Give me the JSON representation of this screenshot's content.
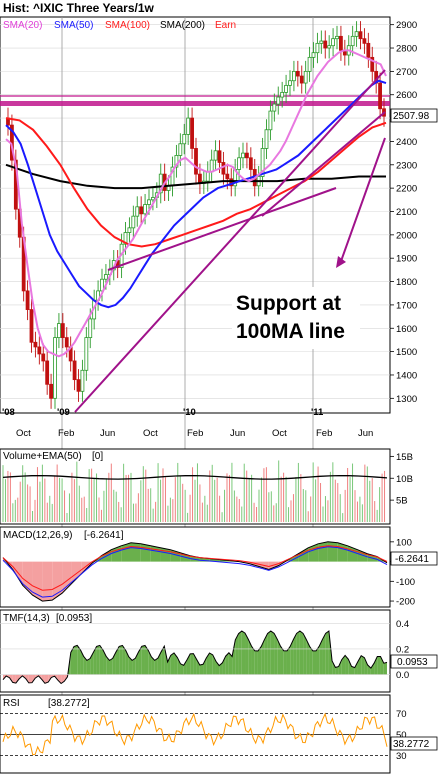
{
  "chart_data": {
    "type": "line",
    "title": "Hist: ^IXIC Three Years/1w",
    "colors": {
      "sma20": "#e040d8",
      "sma50": "#1a1aff",
      "sma100": "#ff1a1a",
      "sma200": "#000000",
      "earn": "#ff1a1a",
      "trendline": "#a0128a",
      "support_band": "#c0158c",
      "up_candle": "#2a9a2a",
      "down_candle": "#c01010",
      "volume_up": "#7ac87a",
      "volume_down": "#f08080",
      "macd_fill": "#6ab04c",
      "macd_neg_fill": "#f4a0a0",
      "rsi_line": "#ff9900"
    },
    "legend": [
      "SMA(20)",
      "SMA(50)",
      "SMA(100)",
      "SMA(200)",
      "Earn"
    ],
    "year_labels": [
      "'08",
      "'09",
      "'10",
      "'11"
    ],
    "month_labels": [
      "Oct",
      "Feb",
      "Jun",
      "Oct",
      "Feb",
      "Jun",
      "Oct",
      "Feb",
      "Jun"
    ],
    "price_panel": {
      "y_ticks": [
        1300,
        1400,
        1500,
        1600,
        1700,
        1800,
        1900,
        2000,
        2100,
        2200,
        2300,
        2400,
        2500,
        2600,
        2700,
        2800,
        2900
      ],
      "ylim": [
        1250,
        2920
      ],
      "last_value": "2507.98",
      "annotation": "Support at 100MA line",
      "annotation_lines": [
        "Support at",
        "100MA line"
      ],
      "close_series": [
        2470,
        2320,
        2110,
        1990,
        1760,
        1680,
        1540,
        1520,
        1490,
        1460,
        1360,
        1300,
        1560,
        1620,
        1560,
        1520,
        1460,
        1380,
        1330,
        1420,
        1560,
        1640,
        1720,
        1760,
        1810,
        1830,
        1850,
        1890,
        1860,
        1960,
        2010,
        2030,
        2080,
        2120,
        2090,
        2130,
        2150,
        2160,
        2180,
        2260,
        2190,
        2210,
        2290,
        2340,
        2390,
        2430,
        2500,
        2370,
        2260,
        2220,
        2230,
        2270,
        2320,
        2360,
        2310,
        2260,
        2240,
        2210,
        2280,
        2330,
        2350,
        2330,
        2280,
        2210,
        2250,
        2370,
        2450,
        2530,
        2560,
        2590,
        2610,
        2640,
        2660,
        2700,
        2680,
        2650,
        2700,
        2760,
        2780,
        2820,
        2830,
        2800,
        2810,
        2840,
        2850,
        2790,
        2770,
        2810,
        2850,
        2870,
        2840,
        2820,
        2760,
        2700,
        2650,
        2540,
        2508
      ],
      "sma20": [
        2410,
        2390,
        2280,
        2050,
        1880,
        1720,
        1600,
        1530,
        1500,
        1490,
        1480,
        1490,
        1510,
        1540,
        1580,
        1620,
        1660,
        1700,
        1740,
        1790,
        1840,
        1890,
        1920,
        1950,
        1980,
        2020,
        2060,
        2100,
        2140,
        2180,
        2220,
        2250,
        2290,
        2320,
        2330,
        2310,
        2290,
        2280,
        2270,
        2270,
        2280,
        2290,
        2300,
        2290,
        2260,
        2240,
        2230,
        2240,
        2260,
        2280,
        2300,
        2330,
        2360,
        2400,
        2450,
        2500,
        2550,
        2600,
        2640,
        2680,
        2710,
        2740,
        2760,
        2780,
        2790,
        2790,
        2780,
        2770,
        2760,
        2750,
        2740,
        2730,
        2680
      ],
      "sma50": [
        2470,
        2440,
        2390,
        2300,
        2200,
        2100,
        2000,
        1930,
        1880,
        1830,
        1780,
        1750,
        1720,
        1700,
        1690,
        1700,
        1730,
        1770,
        1820,
        1870,
        1920,
        1960,
        2000,
        2040,
        2070,
        2100,
        2130,
        2160,
        2180,
        2200,
        2210,
        2220,
        2230,
        2240,
        2250,
        2260,
        2270,
        2280,
        2300,
        2320,
        2340,
        2370,
        2400,
        2430,
        2460,
        2490,
        2520,
        2550,
        2580,
        2610,
        2640,
        2660,
        2650
      ],
      "sma100": [
        2500,
        2490,
        2450,
        2380,
        2300,
        2200,
        2110,
        2040,
        1990,
        1960,
        1950,
        1960,
        1980,
        2000,
        2020,
        2040,
        2060,
        2090,
        2110,
        2140,
        2170,
        2200,
        2230,
        2270,
        2320,
        2370,
        2420,
        2460,
        2480
      ],
      "sma200": [
        2300,
        2260,
        2230,
        2210,
        2200,
        2200,
        2210,
        2220,
        2230,
        2230,
        2230,
        2240,
        2240,
        2250,
        2250
      ],
      "support_level": 2545,
      "support_level2": 2575
    },
    "volume_panel": {
      "label": "Volume+EMA(50)",
      "label_value": "[0]",
      "y_ticks": [
        "15B",
        "10B",
        "5B"
      ],
      "y_tick_values": [
        15,
        10,
        5
      ],
      "ylim": [
        0,
        16
      ]
    },
    "macd_panel": {
      "label": "MACD(12,26,9)",
      "label_value": "[-6.2641]",
      "y_ticks": [
        100,
        0,
        -100,
        -200
      ],
      "ylim": [
        -220,
        160
      ],
      "last_value": "-6.2641",
      "macd": [
        20,
        -40,
        -120,
        -170,
        -200,
        -195,
        -160,
        -110,
        -60,
        -10,
        30,
        60,
        80,
        95,
        90,
        80,
        70,
        60,
        45,
        30,
        20,
        15,
        10,
        5,
        0,
        -10,
        -25,
        -40,
        -20,
        10,
        40,
        70,
        90,
        100,
        95,
        80,
        60,
        40,
        25,
        -6
      ]
    },
    "tmf_panel": {
      "label": "TMF(14,3)",
      "label_value": "[0.0953]",
      "y_ticks": [
        0.4,
        0.2,
        0.0
      ],
      "ylim": [
        -0.12,
        0.48
      ],
      "last_value": "0.0953"
    },
    "rsi_panel": {
      "label": "RSI",
      "label_value": "[38.2772]",
      "y_ticks": [
        70,
        50,
        30
      ],
      "ylim": [
        15,
        85
      ],
      "last_value": "38.2772"
    }
  }
}
